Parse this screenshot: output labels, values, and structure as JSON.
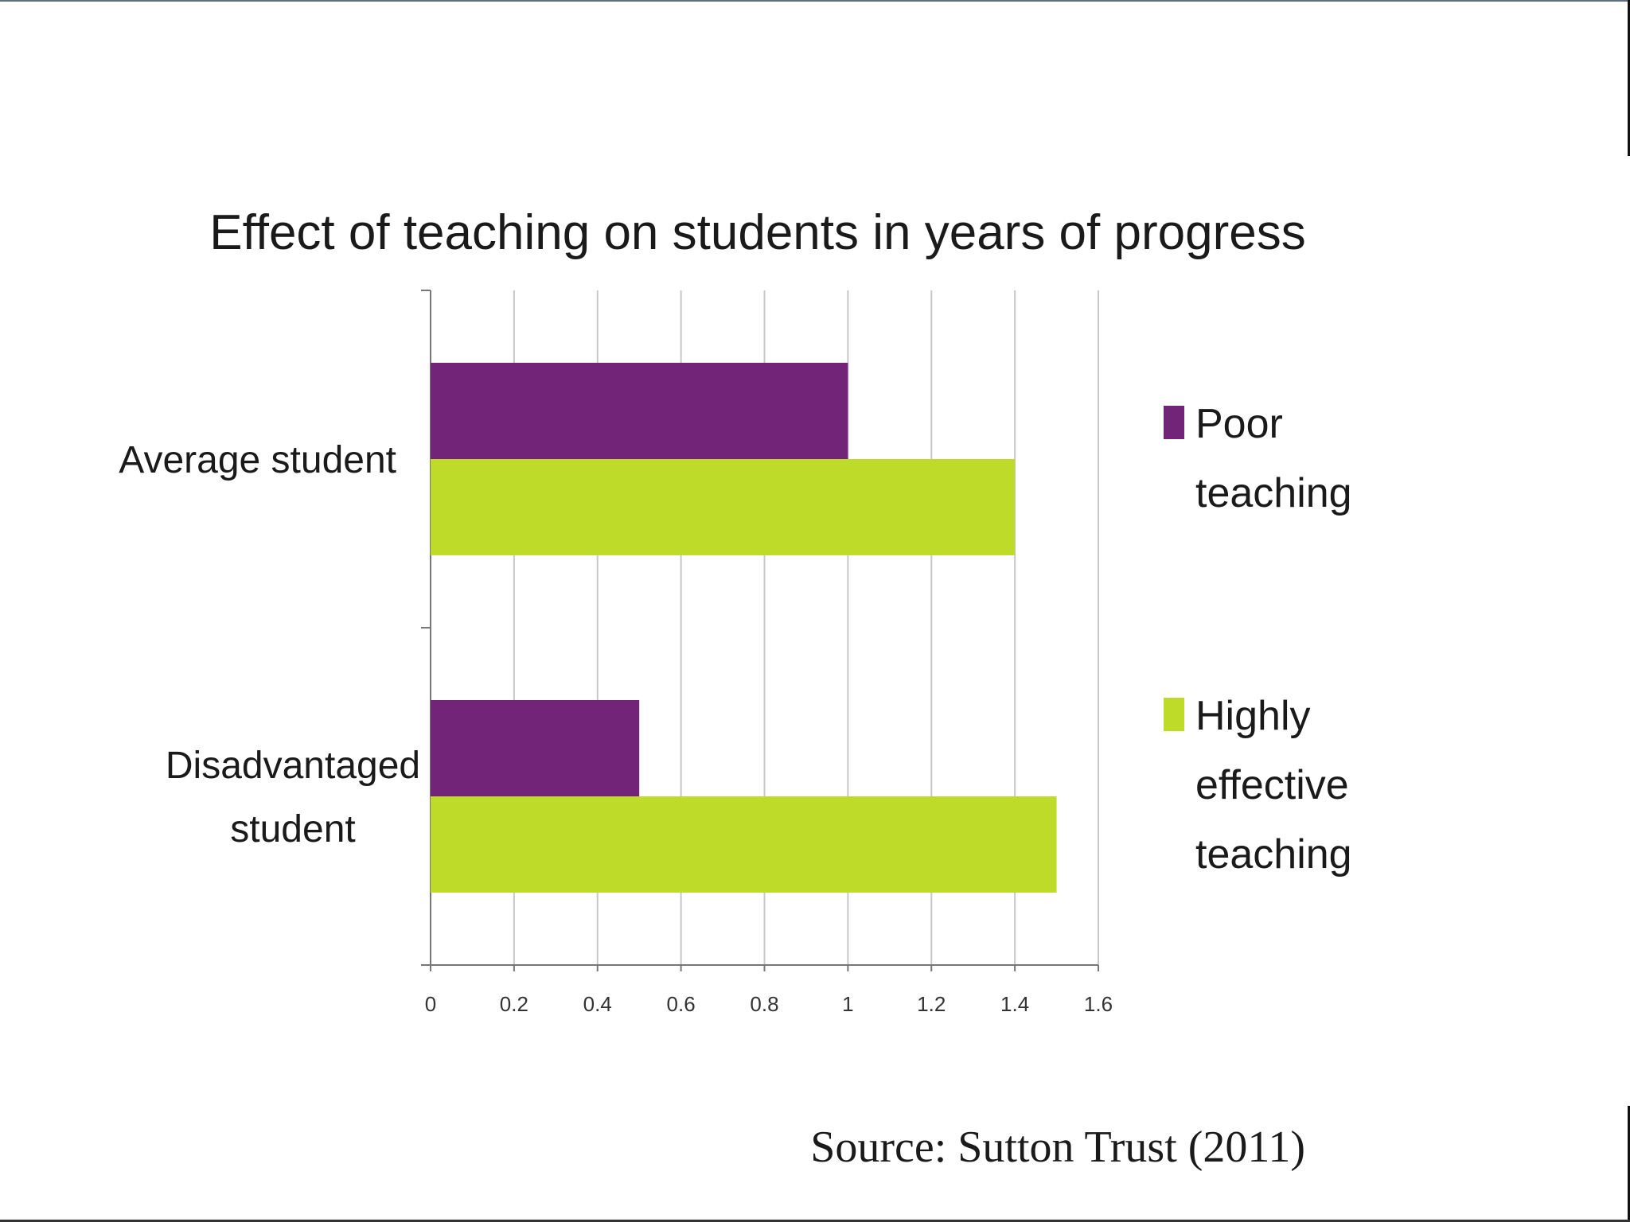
{
  "colors": {
    "poor": "#722578",
    "effective": "#bedb2a",
    "grid": "#c8c8c8",
    "axis": "#777777"
  },
  "source": "Source: Sutton Trust (2011)",
  "chart_data": {
    "type": "bar",
    "orientation": "horizontal",
    "title": "Effect of teaching on students in years of progress",
    "categories": [
      [
        "Average student"
      ],
      [
        "Disadvantaged",
        "student"
      ]
    ],
    "series": [
      {
        "name": [
          "Poor",
          "teaching"
        ],
        "color": "#722578",
        "values": [
          1.0,
          0.5
        ]
      },
      {
        "name": [
          "Highly",
          "effective",
          "teaching"
        ],
        "color": "#bedb2a",
        "values": [
          1.4,
          1.5
        ]
      }
    ],
    "xlim": [
      0,
      1.6
    ],
    "xticks": [
      "0",
      "0.2",
      "0.4",
      "0.6",
      "0.8",
      "1",
      "1.2",
      "1.4",
      "1.6"
    ],
    "grid": true,
    "legend_position": "right"
  }
}
